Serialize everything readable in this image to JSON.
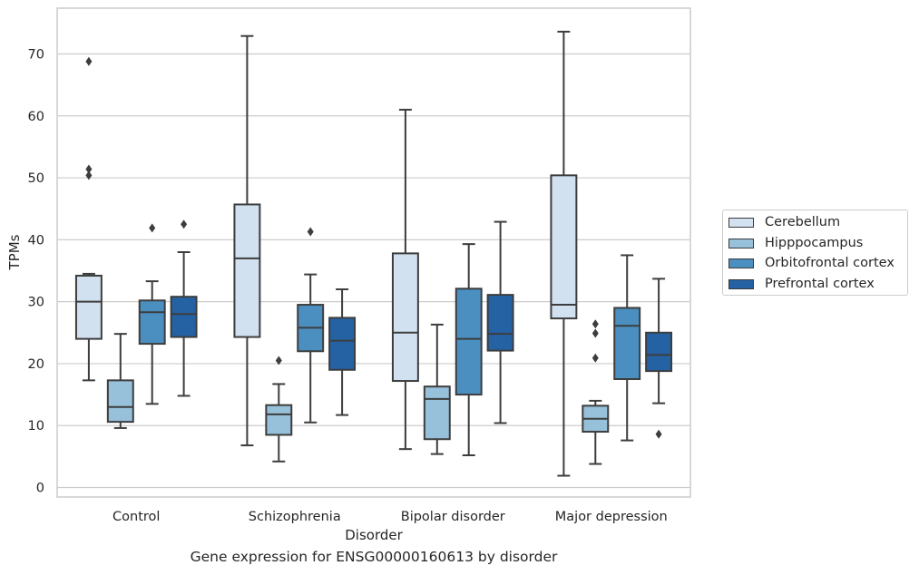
{
  "chart_data": {
    "type": "box",
    "xlabel": "Disorder",
    "ylabel": "TPMs",
    "caption": "Gene expression for ENSG00000160613 by disorder",
    "ylim": [
      -1.5,
      77
    ],
    "yticks": [
      0,
      10,
      20,
      30,
      40,
      50,
      60,
      70
    ],
    "grid": "horizontal",
    "legend_placement": "outside right",
    "categories": [
      "Control",
      "Schizophrenia",
      "Bipolar disorder",
      "Major depression"
    ],
    "series": [
      {
        "name": "Cerebellum",
        "color": "#d1e1f0",
        "boxes": [
          {
            "whisker_low": 17.3,
            "q1": 24.0,
            "median": 30.0,
            "q3": 34.2,
            "whisker_high": 34.5,
            "outliers": [
              50.4,
              51.4,
              68.8
            ]
          },
          {
            "whisker_low": 6.8,
            "q1": 24.3,
            "median": 37.0,
            "q3": 45.7,
            "whisker_high": 72.9,
            "outliers": []
          },
          {
            "whisker_low": 6.2,
            "q1": 17.2,
            "median": 25.0,
            "q3": 37.8,
            "whisker_high": 61.0,
            "outliers": []
          },
          {
            "whisker_low": 1.9,
            "q1": 27.3,
            "median": 29.5,
            "q3": 50.4,
            "whisker_high": 73.6,
            "outliers": []
          }
        ]
      },
      {
        "name": "Hipppocampus",
        "color": "#97c0da",
        "boxes": [
          {
            "whisker_low": 9.6,
            "q1": 10.6,
            "median": 13.0,
            "q3": 17.3,
            "whisker_high": 24.8,
            "outliers": []
          },
          {
            "whisker_low": 4.2,
            "q1": 8.5,
            "median": 11.8,
            "q3": 13.3,
            "whisker_high": 16.7,
            "outliers": [
              20.5
            ]
          },
          {
            "whisker_low": 5.4,
            "q1": 7.8,
            "median": 14.3,
            "q3": 16.3,
            "whisker_high": 26.3,
            "outliers": []
          },
          {
            "whisker_low": 3.8,
            "q1": 9.0,
            "median": 11.1,
            "q3": 13.2,
            "whisker_high": 14.0,
            "outliers": [
              20.9,
              24.9,
              26.4
            ]
          }
        ]
      },
      {
        "name": "Orbitofrontal cortex",
        "color": "#4b8fc1",
        "boxes": [
          {
            "whisker_low": 13.5,
            "q1": 23.2,
            "median": 28.3,
            "q3": 30.2,
            "whisker_high": 33.3,
            "outliers": [
              41.9
            ]
          },
          {
            "whisker_low": 10.5,
            "q1": 22.0,
            "median": 25.8,
            "q3": 29.5,
            "whisker_high": 34.4,
            "outliers": [
              41.3
            ]
          },
          {
            "whisker_low": 5.2,
            "q1": 15.0,
            "median": 24.0,
            "q3": 32.1,
            "whisker_high": 39.3,
            "outliers": []
          },
          {
            "whisker_low": 7.6,
            "q1": 17.5,
            "median": 26.1,
            "q3": 29.0,
            "whisker_high": 37.5,
            "outliers": []
          }
        ]
      },
      {
        "name": "Prefrontal cortex",
        "color": "#2462a4",
        "boxes": [
          {
            "whisker_low": 14.8,
            "q1": 24.3,
            "median": 28.0,
            "q3": 30.8,
            "whisker_high": 38.0,
            "outliers": [
              42.5
            ]
          },
          {
            "whisker_low": 11.7,
            "q1": 19.0,
            "median": 23.7,
            "q3": 27.4,
            "whisker_high": 32.0,
            "outliers": []
          },
          {
            "whisker_low": 10.4,
            "q1": 22.1,
            "median": 24.8,
            "q3": 31.1,
            "whisker_high": 42.9,
            "outliers": []
          },
          {
            "whisker_low": 13.6,
            "q1": 18.8,
            "median": 21.4,
            "q3": 25.0,
            "whisker_high": 33.7,
            "outliers": [
              8.6
            ]
          }
        ]
      }
    ]
  }
}
